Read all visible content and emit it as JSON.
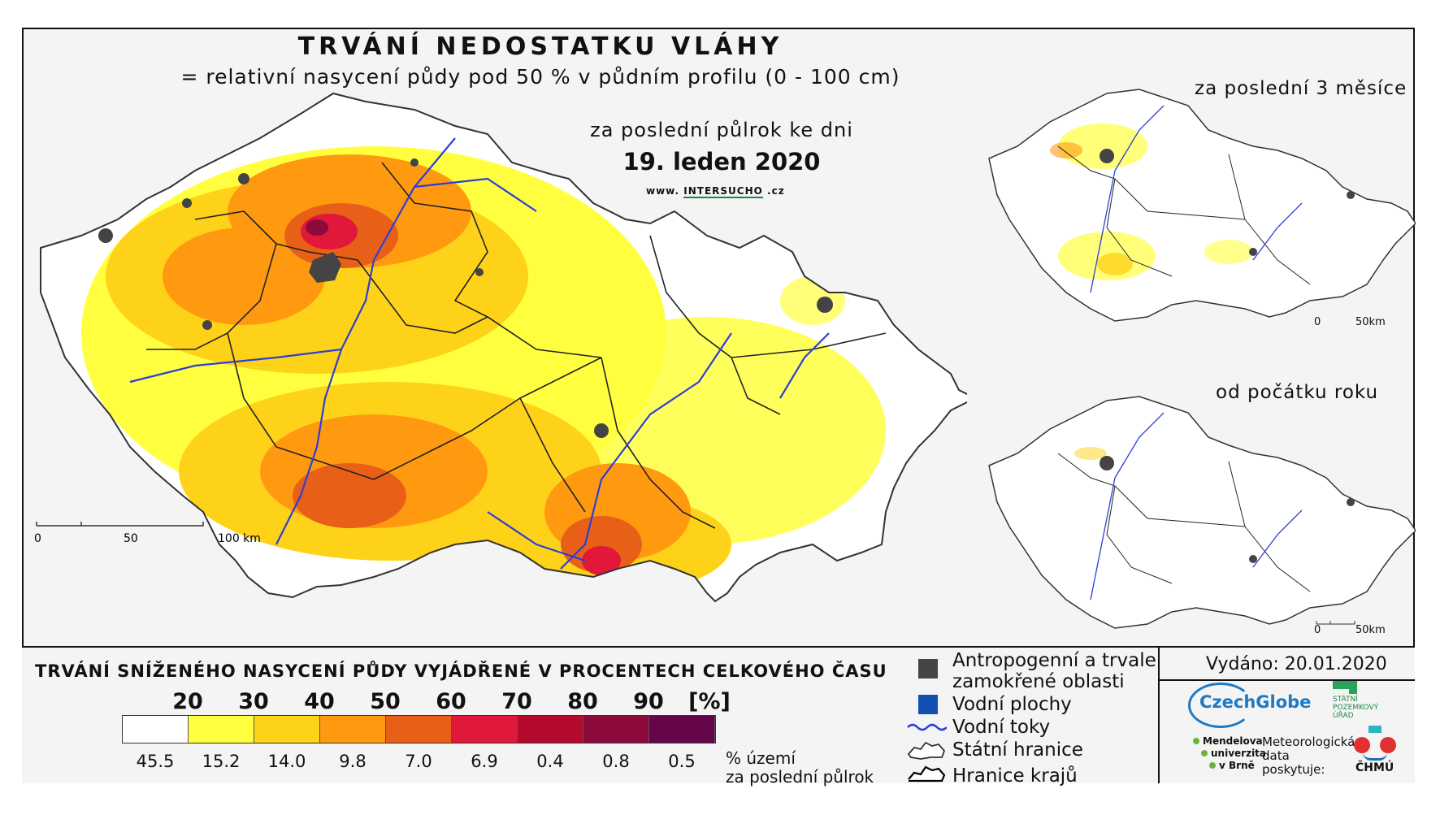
{
  "title": "TRVÁNÍ NEDOSTATKU VLÁHY",
  "subtitle": "= relativní nasycení půdy pod 50 % v půdním profilu (0 - 100 cm)",
  "main_map": {
    "period_label": "za poslední půlrok ke dni",
    "date": "19. leden 2020",
    "website_prefix": "www.",
    "website_brand": "INTERSUCHO",
    "website_suffix": ".cz",
    "scale_labels": [
      "0",
      "50",
      "100 km"
    ]
  },
  "inset_maps": [
    {
      "label": "za poslední 3 měsíce",
      "scale_labels": [
        "0",
        "50km"
      ]
    },
    {
      "label": "od počátku roku",
      "scale_labels": [
        "0",
        "50km"
      ]
    }
  ],
  "legend": {
    "title": "TRVÁNÍ SNÍŽENÉHO NASYCENÍ PŮDY VYJÁDŘENÉ V PROCENTECH CELKOVÉHO ČASU",
    "thresholds": [
      "20",
      "30",
      "40",
      "50",
      "60",
      "70",
      "80",
      "90"
    ],
    "unit": "[%]",
    "colors": [
      "#ffffff",
      "#ffff40",
      "#ffd21a",
      "#ff9a10",
      "#e86018",
      "#e2183a",
      "#b50a2e",
      "#8c0a3c",
      "#65064a"
    ],
    "area_percentages": [
      "45.5",
      "15.2",
      "14.0",
      "9.8",
      "7.0",
      "6.9",
      "0.4",
      "0.8",
      "0.5"
    ],
    "area_unit_line1": "% území",
    "area_unit_line2": "za poslední půlrok"
  },
  "key": {
    "anthropogenic_line1": "Antropogenní a trvale",
    "anthropogenic_line2": "zamokřené oblasti",
    "water_bodies": "Vodní plochy",
    "streams": "Vodní toky",
    "state_border": "Státní hranice",
    "regional_border": "Hranice krajů",
    "colors": {
      "anthropogenic": "#444444",
      "water": "#1450b4",
      "streams": "#2b3fd6"
    }
  },
  "issued": "Vydáno: 20.01.2020",
  "logos": {
    "czechglobe": "CzechGlobe",
    "spu_line1": "STÁTNÍ",
    "spu_line2": "POZEMKOVÝ",
    "spu_line3": "ÚŘAD",
    "mendel_line1": "Mendelova",
    "mendel_line2": "univerzita",
    "mendel_line3": "v Brně",
    "meteo_line1": "Meteorologická",
    "meteo_line2": "data",
    "meteo_line3": "poskytuje:",
    "chmu": "ČHMÚ"
  }
}
